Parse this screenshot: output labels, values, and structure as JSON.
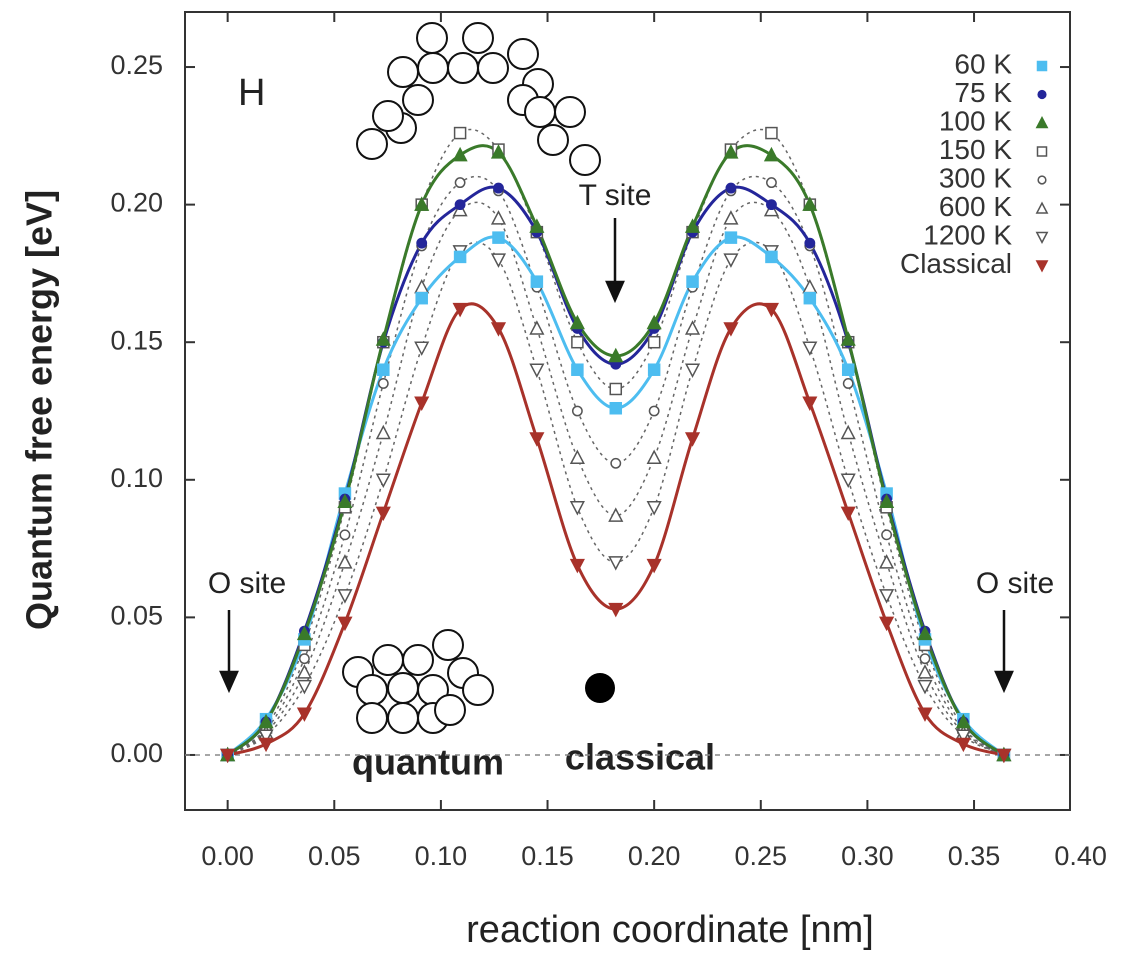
{
  "chart_data": {
    "type": "line",
    "xlabel": "reaction coordinate [nm]",
    "ylabel": "Quantum free energy [eV]",
    "x": [
      0,
      0.018,
      0.036,
      0.055,
      0.073,
      0.091,
      0.109,
      0.127,
      0.145,
      0.164,
      0.182,
      0.2,
      0.218,
      0.236,
      0.255,
      0.273,
      0.291,
      0.309,
      0.327,
      0.345,
      0.364
    ],
    "series": [
      {
        "name": "60 K",
        "color": "#4dbdf0",
        "marker": "square",
        "filled": true,
        "dashed": false,
        "values": [
          0,
          0.013,
          0.042,
          0.095,
          0.14,
          0.166,
          0.181,
          0.188,
          0.172,
          0.14,
          0.126,
          0.14,
          0.172,
          0.188,
          0.181,
          0.166,
          0.14,
          0.095,
          0.042,
          0.013,
          0
        ]
      },
      {
        "name": "75 K",
        "color": "#24269a",
        "marker": "circle",
        "filled": true,
        "dashed": false,
        "values": [
          0,
          0.012,
          0.045,
          0.093,
          0.15,
          0.186,
          0.2,
          0.206,
          0.19,
          0.155,
          0.142,
          0.155,
          0.19,
          0.206,
          0.2,
          0.186,
          0.15,
          0.093,
          0.045,
          0.012,
          0
        ]
      },
      {
        "name": "100 K",
        "color": "#3a7a2a",
        "marker": "triangle-up",
        "filled": true,
        "dashed": false,
        "values": [
          0,
          0.012,
          0.044,
          0.092,
          0.151,
          0.2,
          0.218,
          0.219,
          0.192,
          0.157,
          0.145,
          0.157,
          0.192,
          0.219,
          0.218,
          0.2,
          0.151,
          0.092,
          0.044,
          0.012,
          0
        ]
      },
      {
        "name": "150 K",
        "color": "#555555",
        "marker": "square",
        "filled": false,
        "dashed": true,
        "values": [
          0,
          0.01,
          0.04,
          0.09,
          0.15,
          0.2,
          0.226,
          0.22,
          0.19,
          0.15,
          0.133,
          0.15,
          0.19,
          0.22,
          0.226,
          0.2,
          0.15,
          0.09,
          0.04,
          0.01,
          0
        ]
      },
      {
        "name": "300 K",
        "color": "#555555",
        "marker": "circle",
        "filled": false,
        "dashed": true,
        "values": [
          0,
          0.009,
          0.035,
          0.08,
          0.135,
          0.185,
          0.208,
          0.205,
          0.17,
          0.125,
          0.106,
          0.125,
          0.17,
          0.205,
          0.208,
          0.185,
          0.135,
          0.08,
          0.035,
          0.009,
          0
        ]
      },
      {
        "name": "600 K",
        "color": "#555555",
        "marker": "triangle-up",
        "filled": false,
        "dashed": true,
        "values": [
          0,
          0.008,
          0.03,
          0.07,
          0.117,
          0.17,
          0.198,
          0.195,
          0.155,
          0.108,
          0.087,
          0.108,
          0.155,
          0.195,
          0.198,
          0.17,
          0.117,
          0.07,
          0.03,
          0.008,
          0
        ]
      },
      {
        "name": "1200 K",
        "color": "#555555",
        "marker": "triangle-down",
        "filled": false,
        "dashed": true,
        "values": [
          0,
          0.007,
          0.025,
          0.058,
          0.1,
          0.148,
          0.183,
          0.18,
          0.14,
          0.09,
          0.07,
          0.09,
          0.14,
          0.18,
          0.183,
          0.148,
          0.1,
          0.058,
          0.025,
          0.007,
          0
        ]
      },
      {
        "name": "Classical",
        "color": "#a8322a",
        "marker": "triangle-down",
        "filled": true,
        "dashed": false,
        "values": [
          0,
          0.004,
          0.015,
          0.048,
          0.088,
          0.128,
          0.162,
          0.155,
          0.115,
          0.069,
          0.053,
          0.069,
          0.115,
          0.155,
          0.162,
          0.128,
          0.088,
          0.048,
          0.015,
          0.004,
          0
        ]
      }
    ],
    "xlim": [
      -0.02,
      0.395
    ],
    "ylim": [
      -0.02,
      0.27
    ],
    "xticks": [
      {
        "value": 0,
        "label": "0.00"
      },
      {
        "value": 0.05,
        "label": "0.05"
      },
      {
        "value": 0.1,
        "label": "0.10"
      },
      {
        "value": 0.15,
        "label": "0.15"
      },
      {
        "value": 0.2,
        "label": "0.20"
      },
      {
        "value": 0.25,
        "label": "0.25"
      },
      {
        "value": 0.3,
        "label": "0.30"
      },
      {
        "value": 0.35,
        "label": "0.35"
      },
      {
        "value": 0.4,
        "label": "0.40"
      }
    ],
    "yticks": [
      {
        "value": 0,
        "label": "0.00"
      },
      {
        "value": 0.05,
        "label": "0.05"
      },
      {
        "value": 0.1,
        "label": "0.10"
      },
      {
        "value": 0.15,
        "label": "0.15"
      },
      {
        "value": 0.2,
        "label": "0.20"
      },
      {
        "value": 0.25,
        "label": "0.25"
      }
    ],
    "legend": "upper right",
    "annotations": [
      "H",
      "T site",
      "O site",
      "O site",
      "quantum",
      "classical"
    ]
  }
}
